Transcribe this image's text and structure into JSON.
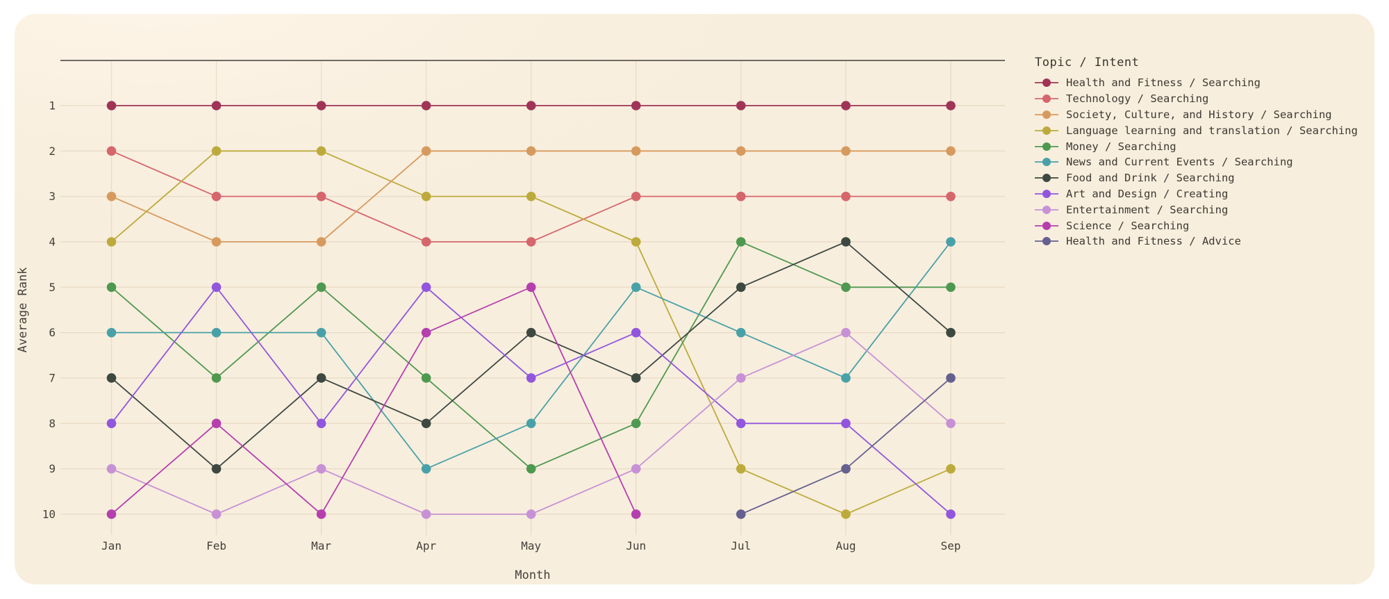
{
  "page": {
    "background": "#ffffff",
    "card_background": "#f9efdf",
    "top_spine_color": "#6e6a61",
    "grid_color": "rgba(140,110,70,0.14)",
    "text_color": "#3d3933"
  },
  "chart_data": {
    "type": "line",
    "subtype": "bump-chart-rank-over-time",
    "title": "",
    "xlabel": "Month",
    "ylabel": "Average Rank",
    "legend_title": "Topic / Intent",
    "legend_position": "right",
    "grid": true,
    "y_inverted": true,
    "ylim": [
      1,
      10
    ],
    "y_ticks": [
      1,
      2,
      3,
      4,
      5,
      6,
      7,
      8,
      9,
      10
    ],
    "categories": [
      "Jan",
      "Feb",
      "Mar",
      "Apr",
      "May",
      "Jun",
      "Jul",
      "Aug",
      "Sep"
    ],
    "series": [
      {
        "name": "Health and Fitness / Searching",
        "color": "#a03457",
        "values": [
          1,
          1,
          1,
          1,
          1,
          1,
          1,
          1,
          1
        ]
      },
      {
        "name": "Technology / Searching",
        "color": "#d5666c",
        "values": [
          2,
          3,
          3,
          4,
          4,
          3,
          3,
          3,
          3
        ]
      },
      {
        "name": "Society, Culture, and History / Searching",
        "color": "#d79a5e",
        "values": [
          3,
          4,
          4,
          2,
          2,
          2,
          2,
          2,
          2
        ]
      },
      {
        "name": "Language learning and translation / Searching",
        "color": "#bcab3c",
        "values": [
          4,
          2,
          2,
          3,
          3,
          4,
          9,
          10,
          9
        ]
      },
      {
        "name": "Money / Searching",
        "color": "#4e9950",
        "values": [
          5,
          7,
          5,
          7,
          9,
          8,
          4,
          5,
          5
        ]
      },
      {
        "name": "News and Current Events / Searching",
        "color": "#49a1a8",
        "values": [
          6,
          6,
          6,
          9,
          8,
          5,
          6,
          7,
          4
        ]
      },
      {
        "name": "Food and Drink / Searching",
        "color": "#3d4841",
        "values": [
          7,
          9,
          7,
          8,
          6,
          7,
          5,
          4,
          6
        ]
      },
      {
        "name": "Art and Design / Creating",
        "color": "#9156dd",
        "values": [
          8,
          5,
          8,
          5,
          7,
          6,
          8,
          8,
          10
        ]
      },
      {
        "name": "Entertainment / Searching",
        "color": "#c791d6",
        "values": [
          9,
          10,
          9,
          10,
          10,
          9,
          7,
          6,
          8
        ]
      },
      {
        "name": "Science / Searching",
        "color": "#b53fae",
        "values": [
          10,
          8,
          10,
          6,
          5,
          10,
          null,
          null,
          null
        ]
      },
      {
        "name": "Health and Fitness / Advice",
        "color": "#646090",
        "values": [
          null,
          null,
          null,
          null,
          null,
          null,
          10,
          9,
          7
        ]
      }
    ]
  }
}
